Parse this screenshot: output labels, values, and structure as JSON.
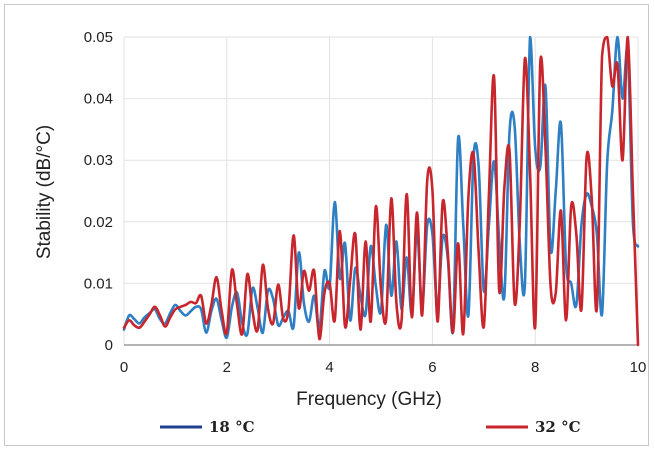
{
  "chart_data": {
    "type": "line",
    "title": "",
    "xlabel": "Frequency (GHz)",
    "ylabel": "Stability (dB/°C)",
    "xlim": [
      0,
      10
    ],
    "ylim": [
      0,
      0.05
    ],
    "x_ticks": [
      "0",
      "2",
      "4",
      "6",
      "8",
      "10"
    ],
    "y_ticks": [
      "0",
      "0.01",
      "0.02",
      "0.03",
      "0.04",
      "0.05"
    ],
    "grid": true,
    "legend_position": "bottom",
    "series": [
      {
        "name": "18 °C",
        "color": "#2f7fc4",
        "legend_color": "#1f3f8f",
        "points": [
          [
            0.0,
            0.0025
          ],
          [
            0.1,
            0.0048
          ],
          [
            0.2,
            0.0042
          ],
          [
            0.3,
            0.0035
          ],
          [
            0.4,
            0.0045
          ],
          [
            0.5,
            0.0052
          ],
          [
            0.6,
            0.0058
          ],
          [
            0.7,
            0.0042
          ],
          [
            0.8,
            0.0035
          ],
          [
            0.9,
            0.0052
          ],
          [
            1.0,
            0.0065
          ],
          [
            1.1,
            0.0055
          ],
          [
            1.2,
            0.0048
          ],
          [
            1.3,
            0.0055
          ],
          [
            1.4,
            0.0062
          ],
          [
            1.5,
            0.0058
          ],
          [
            1.6,
            0.002
          ],
          [
            1.7,
            0.0055
          ],
          [
            1.8,
            0.0075
          ],
          [
            1.9,
            0.004
          ],
          [
            2.0,
            0.0012
          ],
          [
            2.1,
            0.0062
          ],
          [
            2.2,
            0.0085
          ],
          [
            2.3,
            0.0035
          ],
          [
            2.4,
            0.0018
          ],
          [
            2.5,
            0.0092
          ],
          [
            2.6,
            0.006
          ],
          [
            2.7,
            0.002
          ],
          [
            2.8,
            0.0088
          ],
          [
            2.9,
            0.0075
          ],
          [
            3.0,
            0.0032
          ],
          [
            3.1,
            0.0045
          ],
          [
            3.2,
            0.0055
          ],
          [
            3.3,
            0.003
          ],
          [
            3.4,
            0.015
          ],
          [
            3.5,
            0.0068
          ],
          [
            3.6,
            0.0038
          ],
          [
            3.7,
            0.008
          ],
          [
            3.8,
            0.0025
          ],
          [
            3.9,
            0.012
          ],
          [
            4.0,
            0.0095
          ],
          [
            4.1,
            0.0232
          ],
          [
            4.2,
            0.0108
          ],
          [
            4.3,
            0.0165
          ],
          [
            4.4,
            0.004
          ],
          [
            4.5,
            0.0125
          ],
          [
            4.6,
            0.008
          ],
          [
            4.7,
            0.005
          ],
          [
            4.8,
            0.016
          ],
          [
            4.9,
            0.0095
          ],
          [
            5.0,
            0.0055
          ],
          [
            5.1,
            0.0195
          ],
          [
            5.2,
            0.008
          ],
          [
            5.3,
            0.0168
          ],
          [
            5.4,
            0.0058
          ],
          [
            5.5,
            0.0142
          ],
          [
            5.6,
            0.005
          ],
          [
            5.7,
            0.0185
          ],
          [
            5.8,
            0.0062
          ],
          [
            5.9,
            0.0195
          ],
          [
            6.0,
            0.018
          ],
          [
            6.1,
            0.006
          ],
          [
            6.2,
            0.0175
          ],
          [
            6.3,
            0.014
          ],
          [
            6.4,
            0.0022
          ],
          [
            6.5,
            0.0335
          ],
          [
            6.6,
            0.0195
          ],
          [
            6.7,
            0.0048
          ],
          [
            6.8,
            0.0305
          ],
          [
            6.9,
            0.029
          ],
          [
            7.0,
            0.0088
          ],
          [
            7.1,
            0.0195
          ],
          [
            7.2,
            0.0298
          ],
          [
            7.3,
            0.017
          ],
          [
            7.4,
            0.008
          ],
          [
            7.5,
            0.0345
          ],
          [
            7.6,
            0.0355
          ],
          [
            7.7,
            0.0165
          ],
          [
            7.8,
            0.01
          ],
          [
            7.9,
            0.05
          ],
          [
            8.0,
            0.032
          ],
          [
            8.1,
            0.029
          ],
          [
            8.2,
            0.042
          ],
          [
            8.3,
            0.0155
          ],
          [
            8.4,
            0.025
          ],
          [
            8.5,
            0.036
          ],
          [
            8.6,
            0.013
          ],
          [
            8.7,
            0.01
          ],
          [
            8.8,
            0.0065
          ],
          [
            8.9,
            0.0195
          ],
          [
            9.0,
            0.0245
          ],
          [
            9.1,
            0.0225
          ],
          [
            9.2,
            0.018
          ],
          [
            9.3,
            0.005
          ],
          [
            9.4,
            0.0295
          ],
          [
            9.5,
            0.038
          ],
          [
            9.6,
            0.05
          ],
          [
            9.7,
            0.04
          ],
          [
            9.8,
            0.048
          ],
          [
            9.9,
            0.02
          ],
          [
            10.0,
            0.016
          ]
        ]
      },
      {
        "name": "32 °C",
        "color": "#c8262c",
        "legend_color": "#c8262c",
        "points": [
          [
            0.0,
            0.0028
          ],
          [
            0.1,
            0.004
          ],
          [
            0.2,
            0.0032
          ],
          [
            0.3,
            0.0028
          ],
          [
            0.4,
            0.0038
          ],
          [
            0.5,
            0.005
          ],
          [
            0.6,
            0.0062
          ],
          [
            0.7,
            0.0048
          ],
          [
            0.8,
            0.003
          ],
          [
            0.9,
            0.0045
          ],
          [
            1.0,
            0.0058
          ],
          [
            1.1,
            0.0062
          ],
          [
            1.2,
            0.0065
          ],
          [
            1.3,
            0.007
          ],
          [
            1.4,
            0.0068
          ],
          [
            1.5,
            0.008
          ],
          [
            1.6,
            0.0035
          ],
          [
            1.7,
            0.0065
          ],
          [
            1.8,
            0.011
          ],
          [
            1.9,
            0.0055
          ],
          [
            2.0,
            0.002
          ],
          [
            2.1,
            0.0122
          ],
          [
            2.2,
            0.0065
          ],
          [
            2.3,
            0.0018
          ],
          [
            2.4,
            0.0115
          ],
          [
            2.5,
            0.0055
          ],
          [
            2.6,
            0.0025
          ],
          [
            2.7,
            0.013
          ],
          [
            2.8,
            0.006
          ],
          [
            2.9,
            0.0035
          ],
          [
            3.0,
            0.0098
          ],
          [
            3.1,
            0.0042
          ],
          [
            3.2,
            0.0058
          ],
          [
            3.3,
            0.0178
          ],
          [
            3.4,
            0.006
          ],
          [
            3.5,
            0.012
          ],
          [
            3.6,
            0.0088
          ],
          [
            3.7,
            0.012
          ],
          [
            3.8,
            0.001
          ],
          [
            3.9,
            0.0085
          ],
          [
            4.0,
            0.01
          ],
          [
            4.1,
            0.004
          ],
          [
            4.2,
            0.0185
          ],
          [
            4.3,
            0.003
          ],
          [
            4.4,
            0.0105
          ],
          [
            4.5,
            0.018
          ],
          [
            4.6,
            0.0025
          ],
          [
            4.7,
            0.0168
          ],
          [
            4.8,
            0.0038
          ],
          [
            4.9,
            0.0225
          ],
          [
            5.0,
            0.009
          ],
          [
            5.1,
            0.0042
          ],
          [
            5.2,
            0.0238
          ],
          [
            5.3,
            0.0068
          ],
          [
            5.4,
            0.004
          ],
          [
            5.5,
            0.0245
          ],
          [
            5.6,
            0.0045
          ],
          [
            5.7,
            0.0215
          ],
          [
            5.8,
            0.0048
          ],
          [
            5.9,
            0.0268
          ],
          [
            6.0,
            0.0252
          ],
          [
            6.1,
            0.0038
          ],
          [
            6.2,
            0.0232
          ],
          [
            6.3,
            0.015
          ],
          [
            6.4,
            0.002
          ],
          [
            6.5,
            0.0165
          ],
          [
            6.6,
            0.0018
          ],
          [
            6.7,
            0.024
          ],
          [
            6.8,
            0.031
          ],
          [
            6.9,
            0.015
          ],
          [
            7.0,
            0.003
          ],
          [
            7.1,
            0.0245
          ],
          [
            7.2,
            0.0435
          ],
          [
            7.3,
            0.0088
          ],
          [
            7.4,
            0.0255
          ],
          [
            7.5,
            0.0315
          ],
          [
            7.6,
            0.0068
          ],
          [
            7.7,
            0.0198
          ],
          [
            7.8,
            0.0465
          ],
          [
            7.9,
            0.028
          ],
          [
            8.0,
            0.003
          ],
          [
            8.1,
            0.046
          ],
          [
            8.2,
            0.032
          ],
          [
            8.3,
            0.0095
          ],
          [
            8.4,
            0.0085
          ],
          [
            8.5,
            0.0218
          ],
          [
            8.6,
            0.004
          ],
          [
            8.7,
            0.0225
          ],
          [
            8.8,
            0.018
          ],
          [
            8.9,
            0.0058
          ],
          [
            9.0,
            0.0305
          ],
          [
            9.1,
            0.0238
          ],
          [
            9.2,
            0.006
          ],
          [
            9.3,
            0.0468
          ],
          [
            9.4,
            0.05
          ],
          [
            9.5,
            0.042
          ],
          [
            9.6,
            0.0455
          ],
          [
            9.7,
            0.03
          ],
          [
            9.8,
            0.05
          ],
          [
            9.9,
            0.025
          ],
          [
            10.0,
            0.0
          ]
        ]
      }
    ]
  }
}
